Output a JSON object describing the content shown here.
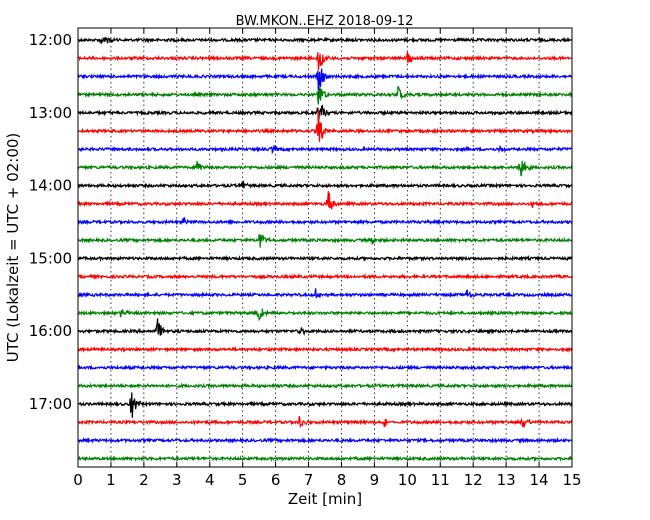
{
  "chart_data": {
    "type": "line",
    "title": "BW.MKON..EHZ 2018-09-12",
    "xlabel": "Zeit  [min]",
    "ylabel": "UTC (Lokalzeit = UTC + 02:00)",
    "xlim": [
      0,
      15
    ],
    "x_ticks": [
      0,
      1,
      2,
      3,
      4,
      5,
      6,
      7,
      8,
      9,
      10,
      11,
      12,
      13,
      14,
      15
    ],
    "y_tick_labels": [
      "12:00",
      "13:00",
      "14:00",
      "15:00",
      "16:00",
      "17:00"
    ],
    "grid": "vertical dotted",
    "series_colors": [
      "#000000",
      "#ff0000",
      "#0000ff",
      "#008000"
    ],
    "traces": [
      {
        "start": "12:00",
        "color": "#000000",
        "events": [
          {
            "t": 0.7,
            "amp": 0.4
          },
          {
            "t": 0.9,
            "amp": 0.3
          }
        ]
      },
      {
        "start": "12:15",
        "color": "#ff0000",
        "events": [
          {
            "t": 7.3,
            "amp": 1.2
          },
          {
            "t": 10.0,
            "amp": 0.4
          }
        ]
      },
      {
        "start": "12:30",
        "color": "#0000ff",
        "events": [
          {
            "t": 7.3,
            "amp": 1.2
          }
        ]
      },
      {
        "start": "12:45",
        "color": "#008000",
        "events": [
          {
            "t": 7.3,
            "amp": 1.2
          },
          {
            "t": 9.7,
            "amp": 0.6
          }
        ]
      },
      {
        "start": "13:00",
        "color": "#000000",
        "events": [
          {
            "t": 7.3,
            "amp": 1.2
          }
        ]
      },
      {
        "start": "13:15",
        "color": "#ff0000",
        "events": [
          {
            "t": 7.3,
            "amp": 1.2
          }
        ]
      },
      {
        "start": "13:30",
        "color": "#0000ff",
        "events": [
          {
            "t": 5.9,
            "amp": 0.3
          },
          {
            "t": 12.8,
            "amp": 0.3
          }
        ]
      },
      {
        "start": "13:45",
        "color": "#008000",
        "events": [
          {
            "t": 3.6,
            "amp": 0.5
          },
          {
            "t": 13.4,
            "amp": 1.2
          }
        ]
      },
      {
        "start": "14:00",
        "color": "#000000",
        "events": [
          {
            "t": 4.9,
            "amp": 0.6
          }
        ]
      },
      {
        "start": "14:15",
        "color": "#ff0000",
        "events": [
          {
            "t": 7.6,
            "amp": 1.0
          },
          {
            "t": 13.8,
            "amp": 0.3
          }
        ]
      },
      {
        "start": "14:30",
        "color": "#0000ff",
        "events": [
          {
            "t": 3.2,
            "amp": 0.3
          }
        ]
      },
      {
        "start": "14:45",
        "color": "#008000",
        "events": [
          {
            "t": 5.5,
            "amp": 0.8
          },
          {
            "t": 8.9,
            "amp": 0.3
          }
        ]
      },
      {
        "start": "15:00",
        "color": "#000000",
        "events": []
      },
      {
        "start": "15:15",
        "color": "#ff0000",
        "events": []
      },
      {
        "start": "15:30",
        "color": "#0000ff",
        "events": [
          {
            "t": 7.2,
            "amp": 0.4
          },
          {
            "t": 11.8,
            "amp": 0.4
          }
        ]
      },
      {
        "start": "15:45",
        "color": "#008000",
        "events": [
          {
            "t": 1.3,
            "amp": 0.4
          },
          {
            "t": 5.5,
            "amp": 0.5
          }
        ]
      },
      {
        "start": "16:00",
        "color": "#000000",
        "events": [
          {
            "t": 2.4,
            "amp": 0.9
          },
          {
            "t": 6.7,
            "amp": 0.4
          }
        ]
      },
      {
        "start": "16:15",
        "color": "#ff0000",
        "events": []
      },
      {
        "start": "16:30",
        "color": "#0000ff",
        "events": []
      },
      {
        "start": "16:45",
        "color": "#008000",
        "events": []
      },
      {
        "start": "17:00",
        "color": "#000000",
        "events": [
          {
            "t": 1.6,
            "amp": 1.1
          }
        ]
      },
      {
        "start": "17:15",
        "color": "#ff0000",
        "events": [
          {
            "t": 6.7,
            "amp": 0.5
          },
          {
            "t": 9.3,
            "amp": 0.3
          },
          {
            "t": 13.5,
            "amp": 0.5
          }
        ]
      },
      {
        "start": "17:30",
        "color": "#0000ff",
        "events": []
      },
      {
        "start": "17:45",
        "color": "#008000",
        "events": []
      }
    ]
  }
}
